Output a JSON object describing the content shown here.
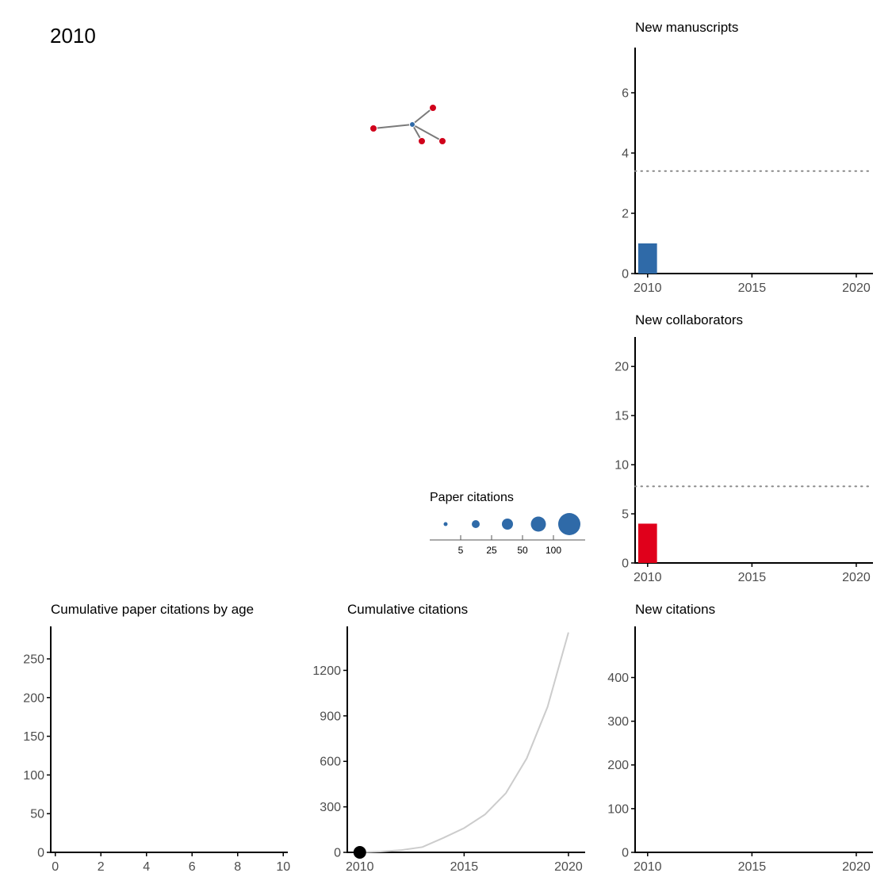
{
  "year_label": "2010",
  "colors": {
    "author_node": "#2f6aa8",
    "collaborator_node": "#d0021b",
    "edge": "#7a7a7a",
    "manuscript_bar": "#2f6aa8",
    "collaborator_bar": "#e0001b",
    "reference_line": "#888888",
    "cumulative_line": "#cccccc",
    "current_point": "#000000",
    "axis": "#000000"
  },
  "legend": {
    "title": "Paper citations",
    "breaks": [
      "5",
      "25",
      "50",
      "100"
    ],
    "break_values": [
      5,
      25,
      50,
      100
    ]
  },
  "chart_data": [
    {
      "id": "network",
      "type": "network",
      "nodes": [
        {
          "id": "author",
          "role": "author"
        },
        {
          "id": "c1",
          "role": "collaborator"
        },
        {
          "id": "c2",
          "role": "collaborator"
        },
        {
          "id": "c3",
          "role": "collaborator"
        },
        {
          "id": "c4",
          "role": "collaborator"
        }
      ],
      "edges": [
        [
          "author",
          "c1"
        ],
        [
          "author",
          "c2"
        ],
        [
          "author",
          "c3"
        ],
        [
          "author",
          "c4"
        ]
      ]
    },
    {
      "id": "new-manuscripts",
      "type": "bar",
      "title": "New manuscripts",
      "x": [
        2010
      ],
      "values": [
        1
      ],
      "xlim": [
        2009.4,
        2020.8
      ],
      "ylim": [
        0,
        7.5
      ],
      "xticks": [
        2010,
        2015,
        2020
      ],
      "yticks": [
        0,
        2,
        4,
        6
      ],
      "reference_line": 3.4,
      "grid": false
    },
    {
      "id": "new-collaborators",
      "type": "bar",
      "title": "New collaborators",
      "x": [
        2010
      ],
      "values": [
        4
      ],
      "xlim": [
        2009.4,
        2020.8
      ],
      "ylim": [
        0,
        23
      ],
      "xticks": [
        2010,
        2015,
        2020
      ],
      "yticks": [
        0,
        5,
        10,
        15,
        20
      ],
      "reference_line": 7.8,
      "grid": false
    },
    {
      "id": "cumulative-paper-citations-by-age",
      "type": "line",
      "title": "Cumulative paper citations by age",
      "series": [],
      "xlim": [
        -0.2,
        10.2
      ],
      "ylim": [
        0,
        292
      ],
      "xticks": [
        0,
        2,
        4,
        6,
        8,
        10
      ],
      "yticks": [
        0,
        50,
        100,
        150,
        200,
        250
      ],
      "grid": false
    },
    {
      "id": "cumulative-citations",
      "type": "line",
      "title": "Cumulative citations",
      "x": [
        2010,
        2011,
        2012,
        2013,
        2014,
        2015,
        2016,
        2017,
        2018,
        2019,
        2020
      ],
      "values": [
        0,
        5,
        15,
        35,
        95,
        160,
        250,
        390,
        620,
        960,
        1450
      ],
      "current_point": {
        "x": 2010,
        "y": 0
      },
      "xlim": [
        2009.4,
        2020.8
      ],
      "ylim": [
        0,
        1490
      ],
      "xticks": [
        2010,
        2015,
        2020
      ],
      "yticks": [
        0,
        300,
        600,
        900,
        1200
      ],
      "grid": false
    },
    {
      "id": "new-citations",
      "type": "bar",
      "title": "New citations",
      "x": [
        2010
      ],
      "values": [
        0
      ],
      "xlim": [
        2009.4,
        2020.8
      ],
      "ylim": [
        0,
        517
      ],
      "xticks": [
        2010,
        2015,
        2020
      ],
      "yticks": [
        0,
        100,
        200,
        300,
        400
      ],
      "grid": false
    }
  ]
}
